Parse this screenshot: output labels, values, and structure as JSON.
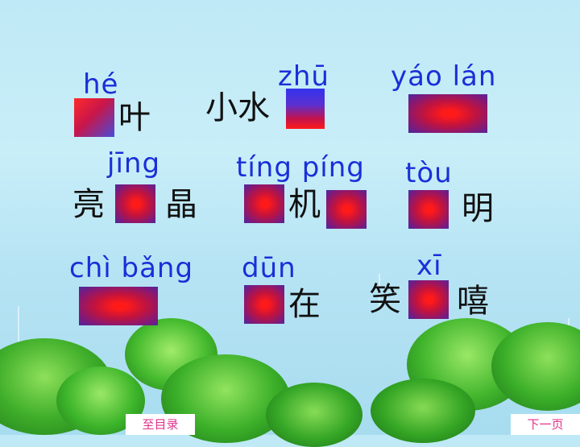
{
  "rows": [
    {
      "pinyin": [
        "hé",
        "zhū",
        "yáo lán"
      ],
      "hanzi": [
        "叶",
        "小水"
      ]
    },
    {
      "pinyin": [
        "jīng",
        "tíng  píng",
        "tòu"
      ],
      "hanzi": [
        "亮",
        "晶",
        "机",
        "明"
      ]
    },
    {
      "pinyin": [
        "chì bǎng",
        "dūn",
        "xī"
      ],
      "hanzi": [
        "在",
        "笑",
        "嘻"
      ]
    }
  ],
  "nav": {
    "toc_label": "至目录",
    "next_label": "下一页"
  },
  "colors": {
    "pinyin": "#1a2fd8",
    "nav_text": "#e0338a",
    "box_center": "#ff1a1a",
    "box_edge": "#4a2aa0"
  }
}
